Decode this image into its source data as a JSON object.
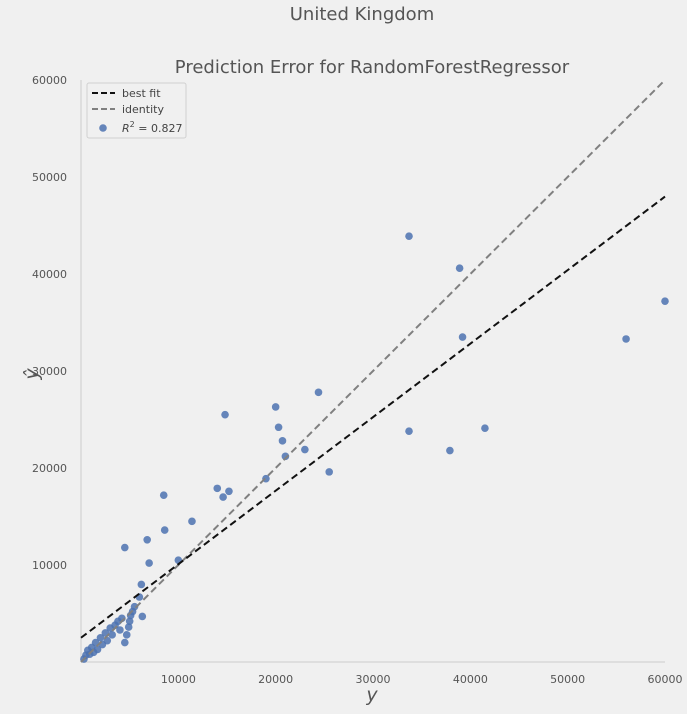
{
  "chart_data": {
    "type": "scatter",
    "suptitle": "United Kingdom",
    "title": "Prediction Error for RandomForestRegressor",
    "xlabel": "y",
    "ylabel": "ŷ",
    "xlim": [
      0,
      60000
    ],
    "ylim": [
      0,
      60000
    ],
    "xticks": [
      10000,
      20000,
      30000,
      40000,
      50000,
      60000
    ],
    "yticks": [
      10000,
      20000,
      30000,
      40000,
      50000,
      60000
    ],
    "grid": false,
    "legend_position": "top-left",
    "legend": {
      "best_fit": "best fit",
      "identity": "identity",
      "r2_prefix": "R",
      "r2_sup": "2",
      "r2_value": " = 0.827"
    },
    "best_fit_line": {
      "intercept": 2500,
      "slope": 0.758
    },
    "colors": {
      "points": "#4c72b0",
      "best_fit": "#111111",
      "identity": "#808080",
      "axis": "#cccccc"
    },
    "points": [
      [
        300,
        300
      ],
      [
        500,
        700
      ],
      [
        700,
        1200
      ],
      [
        900,
        800
      ],
      [
        1100,
        1500
      ],
      [
        1300,
        1000
      ],
      [
        1500,
        2000
      ],
      [
        1700,
        1300
      ],
      [
        2000,
        2500
      ],
      [
        2200,
        1800
      ],
      [
        2500,
        3000
      ],
      [
        2700,
        2200
      ],
      [
        3000,
        3500
      ],
      [
        3200,
        2800
      ],
      [
        3500,
        3800
      ],
      [
        3800,
        4200
      ],
      [
        4000,
        3300
      ],
      [
        4200,
        4500
      ],
      [
        4500,
        2000
      ],
      [
        4700,
        2800
      ],
      [
        4900,
        3600
      ],
      [
        5000,
        4200
      ],
      [
        5100,
        4800
      ],
      [
        5300,
        5200
      ],
      [
        5500,
        5700
      ],
      [
        6000,
        6700
      ],
      [
        6200,
        8000
      ],
      [
        6300,
        4700
      ],
      [
        4500,
        11800
      ],
      [
        6800,
        12600
      ],
      [
        7000,
        10200
      ],
      [
        8500,
        17200
      ],
      [
        8600,
        13600
      ],
      [
        10000,
        10500
      ],
      [
        11400,
        14500
      ],
      [
        14000,
        17900
      ],
      [
        14600,
        17000
      ],
      [
        14800,
        25500
      ],
      [
        15200,
        17600
      ],
      [
        19000,
        18900
      ],
      [
        20000,
        26300
      ],
      [
        20300,
        24200
      ],
      [
        20700,
        22800
      ],
      [
        21000,
        21200
      ],
      [
        23000,
        21900
      ],
      [
        24400,
        27800
      ],
      [
        25500,
        19600
      ],
      [
        33700,
        43900
      ],
      [
        33700,
        23800
      ],
      [
        37900,
        21800
      ],
      [
        38900,
        40600
      ],
      [
        39200,
        33500
      ],
      [
        41500,
        24100
      ],
      [
        56000,
        33300
      ],
      [
        60000,
        37200
      ]
    ]
  }
}
